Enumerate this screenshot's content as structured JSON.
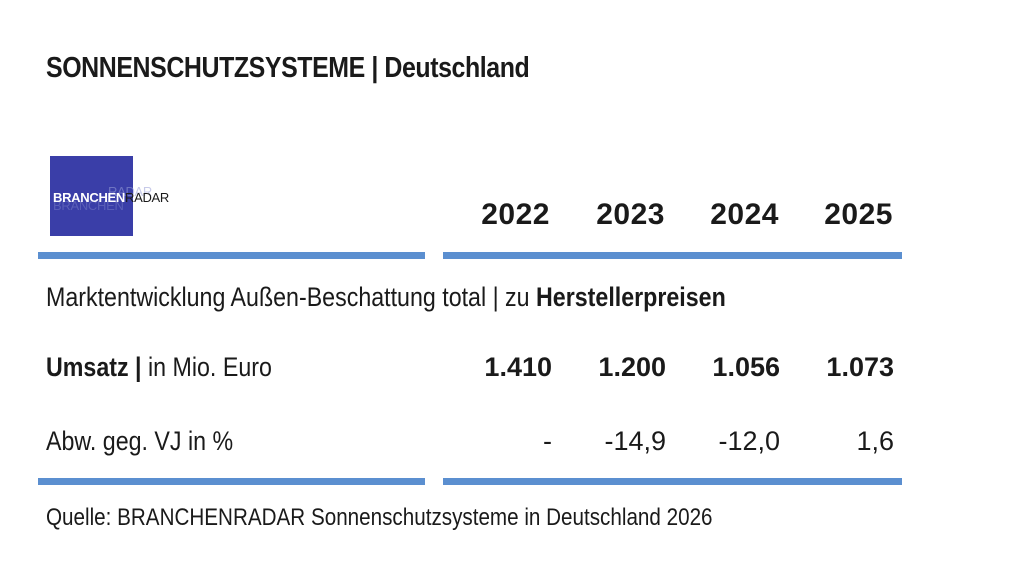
{
  "title": "SONNENSCHUTZSYSTEME | Deutschland",
  "logo": {
    "part1": "BRANCHEN",
    "part2": "RADAR",
    "ghost": "RADAR",
    "ghost2": "BRANCHEN"
  },
  "years": [
    "2022",
    "2023",
    "2024",
    "2025"
  ],
  "subtitle": {
    "normal": "Marktentwicklung Außen-Beschattung total | zu ",
    "bold": "Herstellerpreisen"
  },
  "rows": [
    {
      "label_bold": "Umsatz |",
      "label_normal": " in Mio. Euro",
      "values": [
        "1.410",
        "1.200",
        "1.056",
        "1.073"
      ]
    },
    {
      "label_bold": "",
      "label_normal": "Abw. geg. VJ in %",
      "values": [
        "-",
        "-14,9",
        "-12,0",
        "1,6"
      ]
    }
  ],
  "source": "Quelle: BRANCHENRADAR Sonnenschutzsysteme in Deutschland 2026",
  "colors": {
    "rule": "#5b8fd0",
    "logo_bg": "#3a3ea8"
  }
}
